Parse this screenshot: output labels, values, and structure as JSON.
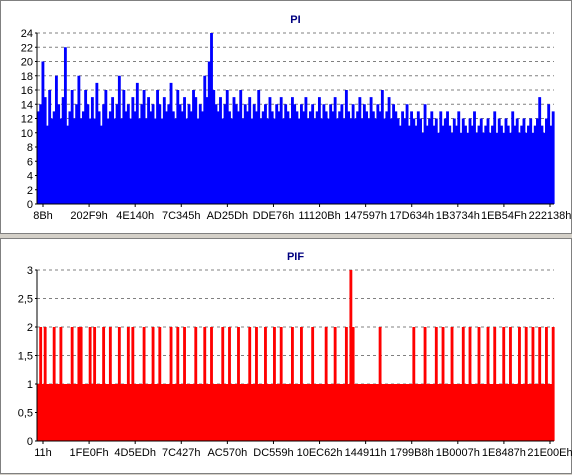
{
  "chart_data": [
    {
      "type": "bar",
      "title": "PI",
      "color": "#0000ff",
      "ylim": [
        0,
        24
      ],
      "y_ticks": [
        "0",
        "2",
        "4",
        "6",
        "8",
        "10",
        "12",
        "14",
        "16",
        "18",
        "20",
        "22",
        "24"
      ],
      "x_tick_labels": [
        "8Bh",
        "202F9h",
        "4E140h",
        "7C345h",
        "AD25Dh",
        "DDE76h",
        "11120Bh",
        "147597h",
        "17D634h",
        "1B3734h",
        "1EB54Fh",
        "222138h"
      ],
      "grid": true,
      "values_sampled": [
        13,
        14,
        20,
        15,
        11,
        16,
        12,
        13,
        18,
        14,
        12,
        15,
        22,
        11,
        13,
        16,
        12,
        14,
        18,
        12,
        13,
        16,
        14,
        12,
        15,
        12,
        17,
        13,
        11,
        14,
        16,
        12,
        13,
        15,
        12,
        14,
        18,
        12,
        16,
        13,
        14,
        12,
        15,
        13,
        17,
        12,
        14,
        16,
        12,
        15,
        13,
        14,
        12,
        16,
        14,
        12,
        15,
        13,
        14,
        17,
        13,
        12,
        16,
        14,
        13,
        15,
        12,
        14,
        13,
        16,
        15,
        12,
        14,
        13,
        18,
        15,
        20,
        24,
        16,
        14,
        13,
        15,
        12,
        14,
        16,
        13,
        12,
        15,
        14,
        13,
        16,
        12,
        14,
        13,
        15,
        12,
        14,
        13,
        16,
        12,
        13,
        14,
        12,
        15,
        13,
        12,
        14,
        13,
        15,
        12,
        14,
        13,
        12,
        15,
        14,
        13,
        12,
        14,
        13,
        15,
        12,
        13,
        14,
        12,
        13,
        15,
        12,
        14,
        13,
        12,
        14,
        13,
        15,
        12,
        13,
        14,
        12,
        16,
        13,
        12,
        14,
        12,
        13,
        15,
        12,
        14,
        13,
        12,
        15,
        13,
        12,
        14,
        13,
        16,
        12,
        13,
        15,
        12,
        14,
        13,
        12,
        11,
        13,
        12,
        14,
        11,
        13,
        12,
        11,
        13,
        12,
        10,
        14,
        11,
        12,
        13,
        11,
        12,
        10,
        13,
        11,
        12,
        13,
        11,
        10,
        12,
        11,
        13,
        10,
        12,
        11,
        10,
        12,
        11,
        13,
        10,
        11,
        12,
        10,
        11,
        12,
        10,
        11,
        13,
        10,
        12,
        11,
        10,
        12,
        11,
        10,
        13,
        11,
        12,
        10,
        11,
        12,
        10,
        11,
        12,
        10,
        11,
        12,
        15,
        11,
        10,
        12,
        14,
        11,
        13
      ]
    },
    {
      "type": "bar",
      "title": "PIF",
      "color": "#ff0000",
      "ylim": [
        0,
        3
      ],
      "y_ticks": [
        "0",
        "0,5",
        "1",
        "1,5",
        "2",
        "2,5",
        "3"
      ],
      "x_tick_labels": [
        "11h",
        "1FE0Fh",
        "4D5EDh",
        "7C427h",
        "AC570h",
        "DC559h",
        "10EC62h",
        "144911h",
        "1799B8h",
        "1B0007h",
        "1E8487h",
        "21E00Eh"
      ],
      "grid": true,
      "values_sampled": [
        1,
        2,
        1,
        2,
        1,
        1,
        1,
        2,
        1,
        1,
        2,
        1,
        1,
        1,
        1,
        2,
        1,
        1,
        2,
        2,
        1,
        1,
        1,
        2,
        1,
        2,
        1,
        1,
        1,
        2,
        1,
        1,
        2,
        1,
        1,
        1,
        2,
        1,
        1,
        1,
        2,
        1,
        2,
        1,
        1,
        1,
        1,
        2,
        1,
        1,
        1,
        2,
        1,
        1,
        2,
        1,
        1,
        1,
        1,
        2,
        1,
        1,
        2,
        1,
        1,
        2,
        1,
        1,
        1,
        1,
        2,
        1,
        1,
        1,
        2,
        1,
        1,
        2,
        1,
        1,
        1,
        1,
        2,
        1,
        1,
        2,
        1,
        1,
        1,
        2,
        1,
        1,
        1,
        1,
        2,
        1,
        1,
        2,
        1,
        1,
        1,
        2,
        1,
        1,
        1,
        2,
        1,
        1,
        2,
        1,
        1,
        1,
        1,
        2,
        1,
        1,
        1,
        2,
        1,
        1,
        1,
        1,
        2,
        1,
        1,
        1,
        1,
        1,
        2,
        1,
        1,
        1,
        2,
        1,
        1,
        1,
        1,
        2,
        1,
        3,
        2,
        1,
        1,
        1,
        1,
        1,
        1,
        1,
        1,
        1,
        1,
        1,
        2,
        1,
        1,
        1,
        1,
        1,
        1,
        1,
        1,
        1,
        1,
        1,
        1,
        1,
        1,
        2,
        1,
        1,
        1,
        1,
        2,
        1,
        1,
        1,
        1,
        2,
        1,
        1,
        2,
        1,
        1,
        1,
        2,
        1,
        1,
        1,
        1,
        2,
        1,
        1,
        2,
        1,
        1,
        1,
        2,
        1,
        1,
        1,
        2,
        1,
        1,
        2,
        1,
        1,
        1,
        2,
        1,
        1,
        2,
        1,
        1,
        1,
        2,
        1,
        1,
        2,
        1,
        1,
        2,
        1,
        1,
        2,
        1,
        1,
        2,
        1,
        1,
        2
      ]
    }
  ]
}
